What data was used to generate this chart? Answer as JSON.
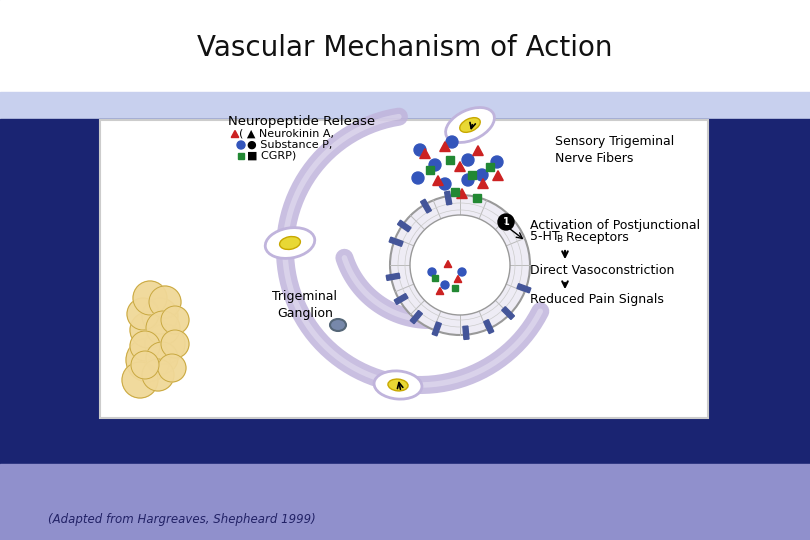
{
  "title": "Vascular Mechanism of Action",
  "subtitle": "(Adapted from Hargreaves, Shepheard 1999)",
  "bg_outer": "#8090cc",
  "bg_dark_blue": "#1a2472",
  "bg_bottom_lavender": "#9090cc",
  "panel_bg": "#ffffff",
  "title_color": "#111111",
  "subtitle_color": "#222266",
  "label_neuropeptide": "Neuropeptide Release",
  "label_neurokinin": "Neurokinin A,",
  "label_substance": "Substance P,",
  "label_cgrp": "CGRP)",
  "label_paren": "(",
  "label_sensory": "Sensory Trigeminal\nNerve Fibers",
  "label_trigeminal": "Trigeminal\nGanglion",
  "label_direct": "Direct Vasoconstriction",
  "label_reduced": "Reduced Pain Signals",
  "vessel_color": "#b8aad0",
  "nerve_color": "#c0b4dc",
  "red_triangle_color": "#cc2222",
  "blue_circle_color": "#3355bb",
  "green_square_color": "#228833",
  "tissue_color": "#f0d898",
  "tissue_outline": "#c8a840",
  "receptor_color": "#445599"
}
